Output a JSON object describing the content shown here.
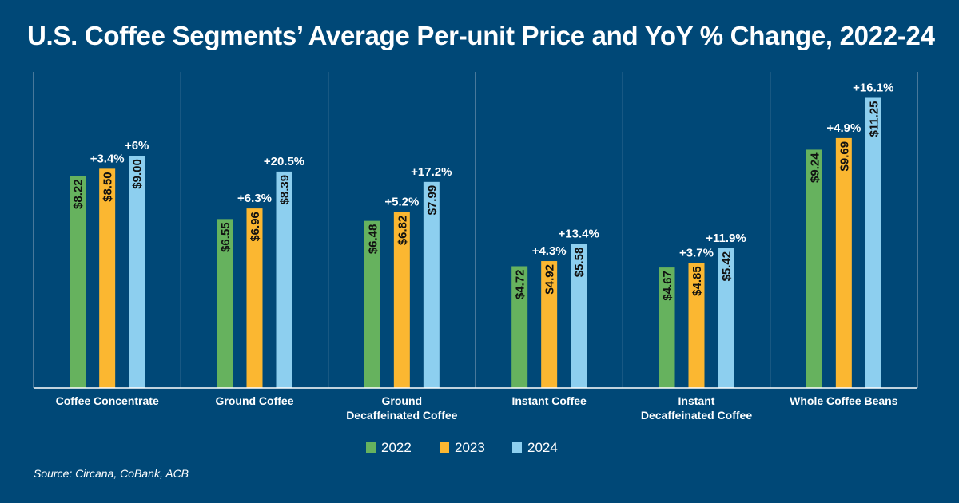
{
  "title": "U.S. Coffee Segments’ Average Per-unit Price and YoY % Change, 2022-24",
  "source": "Source: Circana, CoBank, ACB",
  "colors": {
    "background": "#004877",
    "series_2022": "#66B25E",
    "series_2023": "#FBB731",
    "series_2024": "#8DCFEF",
    "divider": "#8FA8BD"
  },
  "chart_data": {
    "type": "bar",
    "title": "U.S. Coffee Segments’ Average Per-unit Price and YoY % Change, 2022-24",
    "categories": [
      [
        "Coffee Concentrate"
      ],
      [
        "Ground Coffee"
      ],
      [
        "Ground",
        "Decaffeinated Coffee"
      ],
      [
        "Instant Coffee"
      ],
      [
        "Instant",
        "Decaffeinated Coffee"
      ],
      [
        "Whole Coffee Beans"
      ]
    ],
    "series": [
      {
        "name": "2022",
        "values": [
          8.22,
          6.55,
          6.48,
          4.72,
          4.67,
          9.24
        ],
        "labels": [
          "$8.22",
          "$6.55",
          "$6.48",
          "$4.72",
          "$4.67",
          "$9.24"
        ]
      },
      {
        "name": "2023",
        "values": [
          8.5,
          6.96,
          6.82,
          4.92,
          4.85,
          9.69
        ],
        "labels": [
          "$8.50",
          "$6.96",
          "$6.82",
          "$4.92",
          "$4.85",
          "$9.69"
        ]
      },
      {
        "name": "2024",
        "values": [
          9.0,
          8.39,
          7.99,
          5.58,
          5.42,
          11.25
        ],
        "labels": [
          "$9.00",
          "$8.39",
          "$7.99",
          "$5.58",
          "$5.42",
          "$11.25"
        ]
      }
    ],
    "yoy_change_2023": [
      "+3.4%",
      "+6.3%",
      "+5.2%",
      "+4.3%",
      "+3.7%",
      "+4.9%"
    ],
    "yoy_change_2024": [
      "+6%",
      "+20.5%",
      "+17.2%",
      "+13.4%",
      "+11.9%",
      "+16.1%"
    ],
    "ylim": [
      0,
      12.07
    ],
    "legend_position": "bottom-center",
    "grid": false
  }
}
